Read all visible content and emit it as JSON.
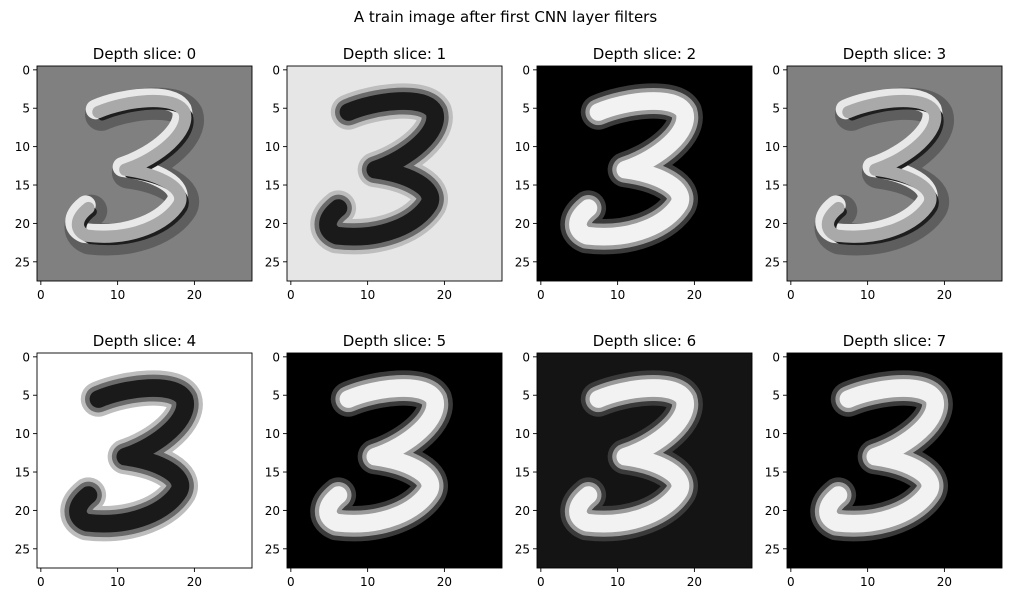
{
  "figure_title": "A train image after first CNN layer filters",
  "chart_data": [
    {
      "type": "heatmap",
      "title": "Depth slice: 0",
      "background": "#808080",
      "digit_style": "emboss",
      "xlim": [
        -0.5,
        27.5
      ],
      "ylim": [
        27.5,
        -0.5
      ],
      "xticks": [
        "0",
        "10",
        "20"
      ],
      "yticks": [
        "0",
        "5",
        "10",
        "15",
        "20",
        "25"
      ],
      "colormap": "gray"
    },
    {
      "type": "heatmap",
      "title": "Depth slice: 1",
      "background": "#e6e6e6",
      "digit_style": "dark",
      "xlim": [
        -0.5,
        27.5
      ],
      "ylim": [
        27.5,
        -0.5
      ],
      "xticks": [
        "0",
        "10",
        "20"
      ],
      "yticks": [
        "0",
        "5",
        "10",
        "15",
        "20",
        "25"
      ],
      "colormap": "gray"
    },
    {
      "type": "heatmap",
      "title": "Depth slice: 2",
      "background": "#000000",
      "digit_style": "bright",
      "xlim": [
        -0.5,
        27.5
      ],
      "ylim": [
        27.5,
        -0.5
      ],
      "xticks": [
        "0",
        "10",
        "20"
      ],
      "yticks": [
        "0",
        "5",
        "10",
        "15",
        "20",
        "25"
      ],
      "colormap": "gray"
    },
    {
      "type": "heatmap",
      "title": "Depth slice: 3",
      "background": "#808080",
      "digit_style": "emboss",
      "xlim": [
        -0.5,
        27.5
      ],
      "ylim": [
        27.5,
        -0.5
      ],
      "xticks": [
        "0",
        "10",
        "20"
      ],
      "yticks": [
        "0",
        "5",
        "10",
        "15",
        "20",
        "25"
      ],
      "colormap": "gray"
    },
    {
      "type": "heatmap",
      "title": "Depth slice: 4",
      "background": "#ffffff",
      "digit_style": "dark",
      "xlim": [
        -0.5,
        27.5
      ],
      "ylim": [
        27.5,
        -0.5
      ],
      "xticks": [
        "0",
        "10",
        "20"
      ],
      "yticks": [
        "0",
        "5",
        "10",
        "15",
        "20",
        "25"
      ],
      "colormap": "gray"
    },
    {
      "type": "heatmap",
      "title": "Depth slice: 5",
      "background": "#000000",
      "digit_style": "bright",
      "xlim": [
        -0.5,
        27.5
      ],
      "ylim": [
        27.5,
        -0.5
      ],
      "xticks": [
        "0",
        "10",
        "20"
      ],
      "yticks": [
        "0",
        "5",
        "10",
        "15",
        "20",
        "25"
      ],
      "colormap": "gray"
    },
    {
      "type": "heatmap",
      "title": "Depth slice: 6",
      "background": "#141414",
      "digit_style": "bright",
      "xlim": [
        -0.5,
        27.5
      ],
      "ylim": [
        27.5,
        -0.5
      ],
      "xticks": [
        "0",
        "10",
        "20"
      ],
      "yticks": [
        "0",
        "5",
        "10",
        "15",
        "20",
        "25"
      ],
      "colormap": "gray"
    },
    {
      "type": "heatmap",
      "title": "Depth slice: 7",
      "background": "#000000",
      "digit_style": "bright",
      "xlim": [
        -0.5,
        27.5
      ],
      "ylim": [
        27.5,
        -0.5
      ],
      "xticks": [
        "0",
        "10",
        "20"
      ],
      "yticks": [
        "0",
        "5",
        "10",
        "15",
        "20",
        "25"
      ],
      "colormap": "gray"
    }
  ]
}
